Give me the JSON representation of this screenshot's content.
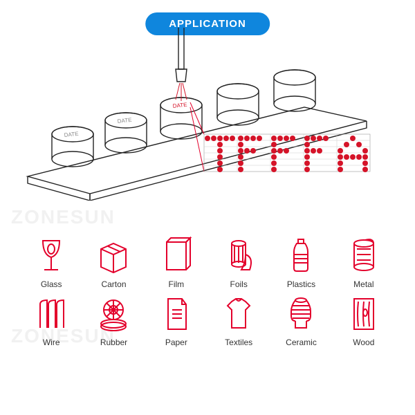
{
  "badge": {
    "text": "APPLICATION",
    "bg": "#0f86dd"
  },
  "date_label": "DATE",
  "dot_letters": "TFFFA",
  "icon_color": "#e3002b",
  "label_color": "#333333",
  "watermark_text": "ZONESUN",
  "watermark_color": "#f1f1f1",
  "icons": [
    {
      "name": "glass",
      "label": "Glass"
    },
    {
      "name": "carton",
      "label": "Carton"
    },
    {
      "name": "film",
      "label": "Film"
    },
    {
      "name": "foils",
      "label": "Foils"
    },
    {
      "name": "plastics",
      "label": "Plastics"
    },
    {
      "name": "metal",
      "label": "Metal"
    },
    {
      "name": "wire",
      "label": "Wire"
    },
    {
      "name": "rubber",
      "label": "Rubber"
    },
    {
      "name": "paper",
      "label": "Paper"
    },
    {
      "name": "textiles",
      "label": "Textiles"
    },
    {
      "name": "ceramic",
      "label": "Ceramic"
    },
    {
      "name": "wood",
      "label": "Wood"
    }
  ],
  "line_color": "#222222",
  "callout_color": "#e3002b",
  "dot_color": "#d51328"
}
